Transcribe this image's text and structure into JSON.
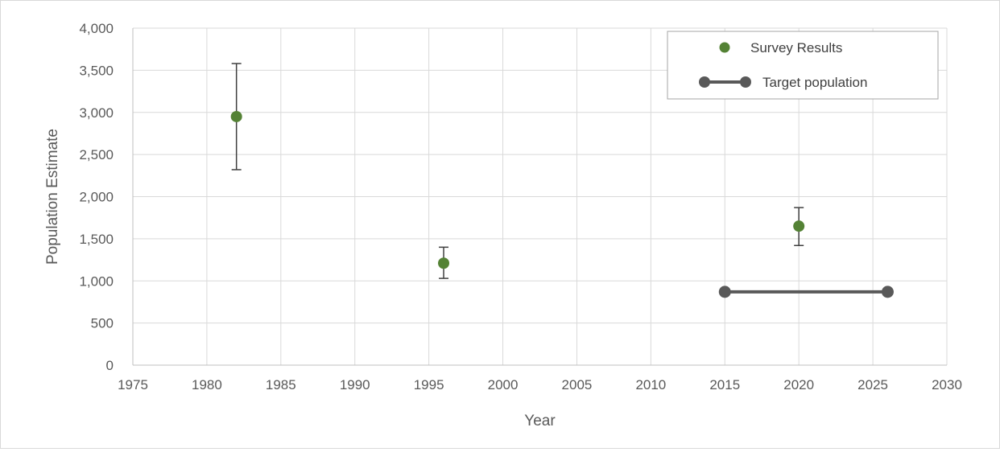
{
  "chart_data": {
    "type": "scatter",
    "title": "",
    "xlabel": "Year",
    "ylabel": "Population Estimate",
    "xlim": [
      1975,
      2030
    ],
    "ylim": [
      0,
      4000
    ],
    "x_ticks": [
      1975,
      1980,
      1985,
      1990,
      1995,
      2000,
      2005,
      2010,
      2015,
      2020,
      2025,
      2030
    ],
    "y_ticks": [
      0,
      500,
      1000,
      1500,
      2000,
      2500,
      3000,
      3500,
      4000
    ],
    "x_tick_labels": [
      "1975",
      "1980",
      "1985",
      "1990",
      "1995",
      "2000",
      "2005",
      "2010",
      "2015",
      "2020",
      "2025",
      "2030"
    ],
    "y_tick_labels": [
      "0",
      "500",
      "1,000",
      "1,500",
      "2,000",
      "2,500",
      "3,000",
      "3,500",
      "4,000"
    ],
    "grid": true,
    "legend_position": "top-right",
    "series": [
      {
        "name": "Survey Results",
        "kind": "points-with-error-bars",
        "color": "#548235",
        "points": [
          {
            "x": 1982,
            "y": 2950,
            "y_low": 2320,
            "y_high": 3580
          },
          {
            "x": 1996,
            "y": 1210,
            "y_low": 1030,
            "y_high": 1400
          },
          {
            "x": 2020,
            "y": 1650,
            "y_low": 1420,
            "y_high": 1870
          }
        ]
      },
      {
        "name": "Target population",
        "kind": "line-with-markers",
        "color": "#595959",
        "points": [
          {
            "x": 2015,
            "y": 870
          },
          {
            "x": 2026,
            "y": 870
          }
        ]
      }
    ]
  }
}
